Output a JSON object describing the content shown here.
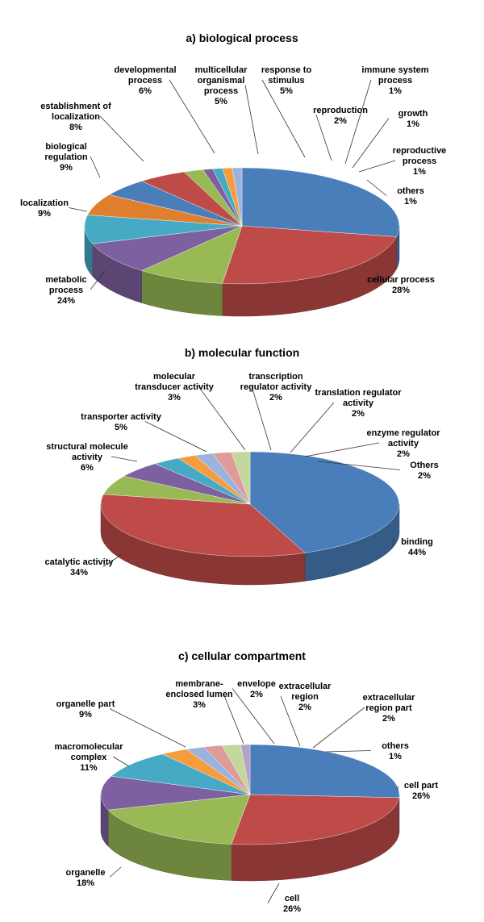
{
  "colors": {
    "blue": "#4a7ebb",
    "red": "#be4b48",
    "green": "#98b954",
    "purple": "#7d60a0",
    "teal": "#46aac5",
    "orange": "#f59c3c",
    "lightblue": "#9bb3dd",
    "pink": "#dd9b9a",
    "lightgreen": "#c3d69b"
  },
  "chart_data": [
    {
      "type": "pie",
      "title": "a) biological process",
      "slices": [
        {
          "label": [
            "cellular process"
          ],
          "value": 28,
          "pct": "28%",
          "color": "#4a7ebb"
        },
        {
          "label": [
            "metabolic",
            "process"
          ],
          "value": 24,
          "pct": "24%",
          "color": "#be4b48"
        },
        {
          "label": [
            "localization"
          ],
          "value": 9,
          "pct": "9%",
          "color": "#98b954"
        },
        {
          "label": [
            "biological",
            "regulation"
          ],
          "value": 9,
          "pct": "9%",
          "color": "#7d60a0"
        },
        {
          "label": [
            "establishment of",
            "localization"
          ],
          "value": 8,
          "pct": "8%",
          "color": "#46aac5"
        },
        {
          "label": [
            "developmental",
            "process"
          ],
          "value": 6,
          "pct": "6%",
          "color": "#e0802e"
        },
        {
          "label": [
            "multicellular",
            "organismal",
            "process"
          ],
          "value": 5,
          "pct": "5%",
          "color": "#4a7ebb"
        },
        {
          "label": [
            "response to",
            "stimulus"
          ],
          "value": 5,
          "pct": "5%",
          "color": "#be4b48"
        },
        {
          "label": [
            "reproduction"
          ],
          "value": 2,
          "pct": "2%",
          "color": "#98b954"
        },
        {
          "label": [
            "immune system",
            "process"
          ],
          "value": 1,
          "pct": "1%",
          "color": "#7d60a0"
        },
        {
          "label": [
            "growth"
          ],
          "value": 1,
          "pct": "1%",
          "color": "#46aac5"
        },
        {
          "label": [
            "reproductive",
            "process"
          ],
          "value": 1,
          "pct": "1%",
          "color": "#f59c3c"
        },
        {
          "label": [
            "others"
          ],
          "value": 1,
          "pct": "1%",
          "color": "#9bb3dd"
        }
      ]
    },
    {
      "type": "pie",
      "title": "b) molecular function",
      "slices": [
        {
          "label": [
            "binding"
          ],
          "value": 44,
          "pct": "44%",
          "color": "#4a7ebb"
        },
        {
          "label": [
            "catalytic activity"
          ],
          "value": 34,
          "pct": "34%",
          "color": "#be4b48"
        },
        {
          "label": [
            "structural molecule",
            "activity"
          ],
          "value": 6,
          "pct": "6%",
          "color": "#98b954"
        },
        {
          "label": [
            "transporter activity"
          ],
          "value": 5,
          "pct": "5%",
          "color": "#7d60a0"
        },
        {
          "label": [
            "molecular",
            "transducer activity"
          ],
          "value": 3,
          "pct": "3%",
          "color": "#46aac5"
        },
        {
          "label": [
            "transcription",
            "regulator activity"
          ],
          "value": 2,
          "pct": "2%",
          "color": "#f59c3c"
        },
        {
          "label": [
            "translation regulator",
            "activity"
          ],
          "value": 2,
          "pct": "2%",
          "color": "#9bb3dd"
        },
        {
          "label": [
            "enzyme regulator",
            "activity"
          ],
          "value": 2,
          "pct": "2%",
          "color": "#dd9b9a"
        },
        {
          "label": [
            "Others"
          ],
          "value": 2,
          "pct": "2%",
          "color": "#c3d69b"
        }
      ]
    },
    {
      "type": "pie",
      "title": "c) cellular compartment",
      "slices": [
        {
          "label": [
            "cell part"
          ],
          "value": 26,
          "pct": "26%",
          "color": "#4a7ebb"
        },
        {
          "label": [
            "cell"
          ],
          "value": 26,
          "pct": "26%",
          "color": "#be4b48"
        },
        {
          "label": [
            "organelle"
          ],
          "value": 18,
          "pct": "18%",
          "color": "#98b954"
        },
        {
          "label": [
            "macromolecular",
            "complex"
          ],
          "value": 11,
          "pct": "11%",
          "color": "#7d60a0"
        },
        {
          "label": [
            "organelle part"
          ],
          "value": 9,
          "pct": "9%",
          "color": "#46aac5"
        },
        {
          "label": [
            "membrane-",
            "enclosed lumen"
          ],
          "value": 3,
          "pct": "3%",
          "color": "#f59c3c"
        },
        {
          "label": [
            "envelope"
          ],
          "value": 2,
          "pct": "2%",
          "color": "#9bb3dd"
        },
        {
          "label": [
            "extracellular",
            "region"
          ],
          "value": 2,
          "pct": "2%",
          "color": "#dd9b9a"
        },
        {
          "label": [
            "extracellular",
            "region part"
          ],
          "value": 2,
          "pct": "2%",
          "color": "#c3d69b"
        },
        {
          "label": [
            "others"
          ],
          "value": 1,
          "pct": "1%",
          "color": "#b3a2c7"
        }
      ]
    }
  ]
}
